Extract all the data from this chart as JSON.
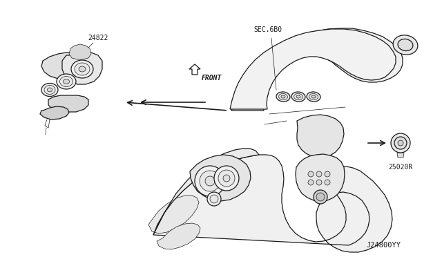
{
  "bg_color": "#ffffff",
  "line_color": "#1a1a1a",
  "light_fill": "#f5f5f5",
  "mid_fill": "#e8e8e8",
  "dark_fill": "#d0d0d0",
  "fig_width": 6.4,
  "fig_height": 3.72,
  "dpi": 100,
  "label_24822": "24822",
  "label_25020R": "25020R",
  "label_sec6B0": "SEC.6B0",
  "label_front": "FRONT",
  "label_j24800yy": "J24800YY",
  "arrow_color": "#111111",
  "text_color": "#111111",
  "lw_main": 0.9,
  "lw_thin": 0.5,
  "lw_thick": 1.2
}
